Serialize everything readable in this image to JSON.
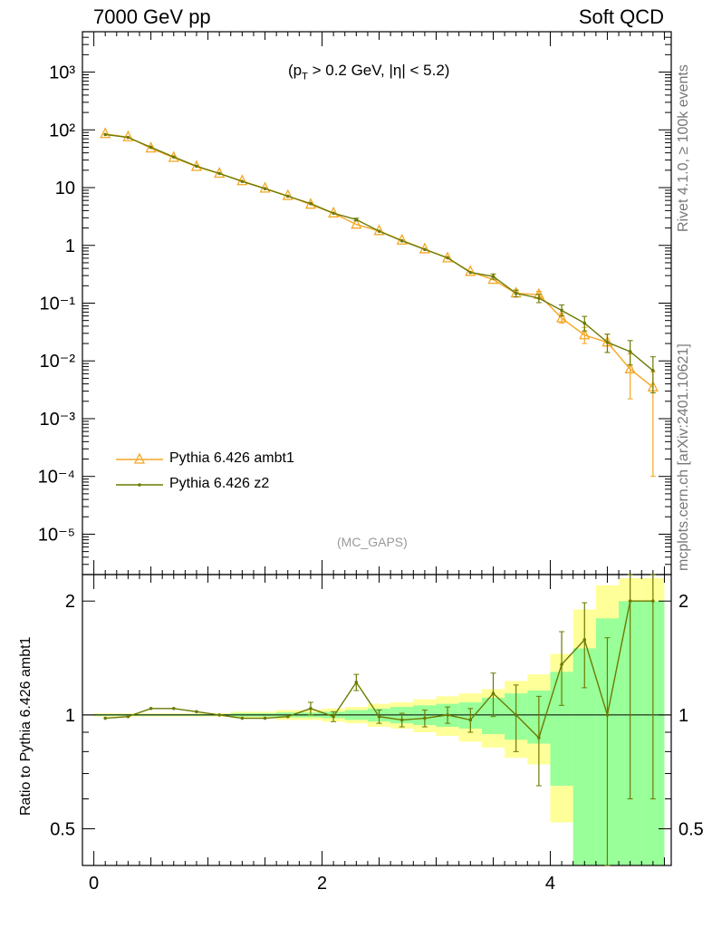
{
  "header": {
    "left": "7000 GeV pp",
    "right": "Soft QCD"
  },
  "side_labels": {
    "top": "Rivet 4.1.0, ≥ 100k events",
    "bottom": "mcplots.cern.ch [arXiv:2401.10621]"
  },
  "chart_data": [
    {
      "type": "line",
      "subtitle": "(p_T > 0.2 GeV, |η| < 5.2)",
      "tag": "(MC_GAPS)",
      "yscale": "log",
      "xlim": [
        -0.1,
        5.06
      ],
      "ylim": [
        2e-06,
        5000
      ],
      "x": [
        0.1,
        0.3,
        0.5,
        0.7,
        0.9,
        1.1,
        1.3,
        1.5,
        1.7,
        1.9,
        2.1,
        2.3,
        2.5,
        2.7,
        2.9,
        3.1,
        3.3,
        3.5,
        3.7,
        3.9,
        4.1,
        4.3,
        4.5,
        4.7,
        4.9
      ],
      "series": [
        {
          "name": "Pythia 6.426 ambt1",
          "color": "#f5a623",
          "marker": "open-triangle",
          "values": [
            85,
            75,
            48,
            33,
            23,
            17.5,
            13,
            9.7,
            7.2,
            5.1,
            3.6,
            2.3,
            1.78,
            1.22,
            0.86,
            0.6,
            0.35,
            0.255,
            0.148,
            0.14,
            0.055,
            0.028,
            0.021,
            0.0072,
            0.0035
          ],
          "err_low": [
            0,
            0,
            0,
            0,
            0,
            0,
            0,
            0,
            0,
            0,
            0,
            0,
            0,
            0,
            0,
            0,
            0,
            0,
            0,
            0.02,
            0.01,
            0.008,
            0.007,
            0.005,
            0.0034
          ],
          "err_high": [
            0,
            0,
            0,
            0,
            0,
            0,
            0,
            0,
            0,
            0,
            0,
            0,
            0,
            0,
            0,
            0,
            0,
            0,
            0,
            0.02,
            0.012,
            0.01,
            0.008,
            0.006,
            0.003
          ]
        },
        {
          "name": "Pythia 6.426 z2",
          "color": "#6b7a00",
          "marker": "dot",
          "values": [
            83,
            74,
            50,
            34,
            23.5,
            17.6,
            12.8,
            9.6,
            7.1,
            5.3,
            3.6,
            2.8,
            1.76,
            1.2,
            0.85,
            0.61,
            0.34,
            0.29,
            0.148,
            0.122,
            0.075,
            0.045,
            0.021,
            0.0145,
            0.0068
          ],
          "err_low": [
            0,
            0,
            0,
            0,
            0,
            0,
            0,
            0,
            0,
            0,
            0,
            0.15,
            0,
            0,
            0,
            0,
            0,
            0.03,
            0.02,
            0.02,
            0.015,
            0.012,
            0.007,
            0.006,
            0.004
          ],
          "err_high": [
            0,
            0,
            0,
            0,
            0,
            0,
            0,
            0,
            0,
            0,
            0,
            0.15,
            0,
            0,
            0,
            0,
            0,
            0.03,
            0.02,
            0.02,
            0.018,
            0.014,
            0.008,
            0.008,
            0.005
          ]
        }
      ]
    },
    {
      "type": "line",
      "ylabel": "Ratio to Pythia 6.426 ambt1",
      "yscale": "log",
      "xlim": [
        -0.1,
        5.06
      ],
      "ylim": [
        0.4,
        2.35
      ],
      "x_ticks": [
        0,
        2,
        4
      ],
      "y_ticks": [
        0.5,
        1,
        2
      ],
      "bands": {
        "bin_edges": [
          0.0,
          0.2,
          0.4,
          0.6,
          0.8,
          1.0,
          1.2,
          1.4,
          1.6,
          1.8,
          2.0,
          2.2,
          2.4,
          2.6,
          2.8,
          3.0,
          3.2,
          3.4,
          3.6,
          3.8,
          4.0,
          4.2,
          4.4,
          4.6,
          4.8,
          5.0
        ],
        "yellow_low": [
          0.99,
          0.99,
          0.99,
          0.99,
          0.99,
          0.99,
          0.98,
          0.98,
          0.97,
          0.97,
          0.96,
          0.95,
          0.93,
          0.92,
          0.9,
          0.88,
          0.85,
          0.82,
          0.77,
          0.74,
          0.52,
          0.42,
          0.4,
          0.4,
          0.4
        ],
        "yellow_high": [
          1.01,
          1.01,
          1.01,
          1.01,
          1.01,
          1.01,
          1.02,
          1.02,
          1.03,
          1.03,
          1.04,
          1.05,
          1.07,
          1.08,
          1.1,
          1.12,
          1.14,
          1.17,
          1.23,
          1.28,
          1.45,
          1.9,
          2.2,
          2.3,
          2.3
        ],
        "green_low": [
          0.995,
          0.995,
          0.995,
          0.995,
          0.995,
          0.995,
          0.99,
          0.99,
          0.985,
          0.985,
          0.98,
          0.97,
          0.96,
          0.95,
          0.94,
          0.93,
          0.92,
          0.89,
          0.86,
          0.84,
          0.65,
          0.4,
          0.4,
          0.4,
          0.4
        ],
        "green_high": [
          1.005,
          1.005,
          1.005,
          1.005,
          1.005,
          1.005,
          1.01,
          1.01,
          1.015,
          1.015,
          1.02,
          1.03,
          1.04,
          1.05,
          1.06,
          1.07,
          1.08,
          1.11,
          1.14,
          1.16,
          1.3,
          1.5,
          1.8,
          2.0,
          2.0
        ]
      },
      "series": [
        {
          "name": "Pythia 6.426 z2",
          "color": "#6b7a00",
          "values": [
            0.98,
            0.99,
            1.04,
            1.04,
            1.02,
            1.0,
            0.98,
            0.98,
            0.99,
            1.04,
            0.99,
            1.22,
            0.99,
            0.97,
            0.98,
            1.0,
            0.97,
            1.14,
            1.0,
            0.87,
            1.36,
            1.58,
            1.0,
            2.0,
            2.0
          ],
          "err_low": [
            0,
            0,
            0,
            0,
            0,
            0,
            0,
            0,
            0,
            0.04,
            0.03,
            0.06,
            0.04,
            0.04,
            0.05,
            0.05,
            0.07,
            0.15,
            0.2,
            0.22,
            0.3,
            0.4,
            0.6,
            1.4,
            1.4
          ],
          "err_high": [
            0,
            0,
            0,
            0,
            0,
            0,
            0,
            0,
            0,
            0.04,
            0.03,
            0.06,
            0.04,
            0.04,
            0.05,
            0.05,
            0.07,
            0.15,
            0.2,
            0.25,
            0.3,
            0.4,
            0.6,
            0.5,
            0.5
          ]
        }
      ]
    }
  ]
}
